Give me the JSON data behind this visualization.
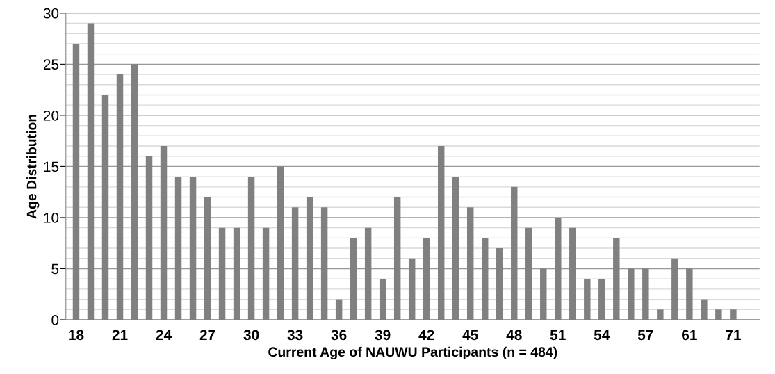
{
  "chart_data": {
    "type": "bar",
    "ylabel": "Age Distribution",
    "xlabel": "Current Age of NAUWU Participants (n = 484)",
    "categories": [
      "18",
      null,
      null,
      "21",
      null,
      null,
      "24",
      null,
      null,
      "27",
      null,
      null,
      "30",
      null,
      null,
      "33",
      null,
      null,
      "36",
      null,
      null,
      "39",
      null,
      null,
      "42",
      null,
      null,
      "45",
      null,
      null,
      "48",
      null,
      null,
      "51",
      null,
      null,
      "54",
      null,
      null,
      "57",
      null,
      null,
      "61",
      null,
      null,
      "71"
    ],
    "values": [
      27,
      29,
      22,
      24,
      25,
      16,
      17,
      14,
      14,
      12,
      9,
      9,
      14,
      9,
      15,
      11,
      12,
      11,
      2,
      8,
      9,
      4,
      12,
      6,
      8,
      17,
      14,
      11,
      8,
      7,
      13,
      9,
      5,
      10,
      9,
      4,
      4,
      8,
      5,
      5,
      1,
      6,
      5,
      2,
      1,
      1
    ],
    "color": "#808080",
    "ylim": [
      0,
      30
    ],
    "yticks": [
      0,
      {
        "value": 1,
        "label": null
      },
      {
        "value": 2,
        "label": null
      },
      {
        "value": 3,
        "label": null
      },
      {
        "value": 4,
        "label": null
      },
      5,
      {
        "value": 6,
        "label": null
      },
      {
        "value": 7,
        "label": null
      },
      {
        "value": 8,
        "label": null
      },
      {
        "value": 9,
        "label": null
      },
      10,
      {
        "value": 11,
        "label": null
      },
      {
        "value": 12,
        "label": null
      },
      {
        "value": 13,
        "label": null
      },
      {
        "value": 14,
        "label": null
      },
      15,
      {
        "value": 16,
        "label": null
      },
      {
        "value": 17,
        "label": null
      },
      {
        "value": 18,
        "label": null
      },
      {
        "value": 19,
        "label": null
      },
      20,
      {
        "value": 21,
        "label": null
      },
      {
        "value": 22,
        "label": null
      },
      {
        "value": 23,
        "label": null
      },
      {
        "value": 24,
        "label": null
      },
      25,
      {
        "value": 26,
        "label": null
      },
      {
        "value": 27,
        "label": null
      },
      {
        "value": 28,
        "label": null
      },
      {
        "value": 29,
        "label": null
      },
      30
    ],
    "grid": "y"
  }
}
